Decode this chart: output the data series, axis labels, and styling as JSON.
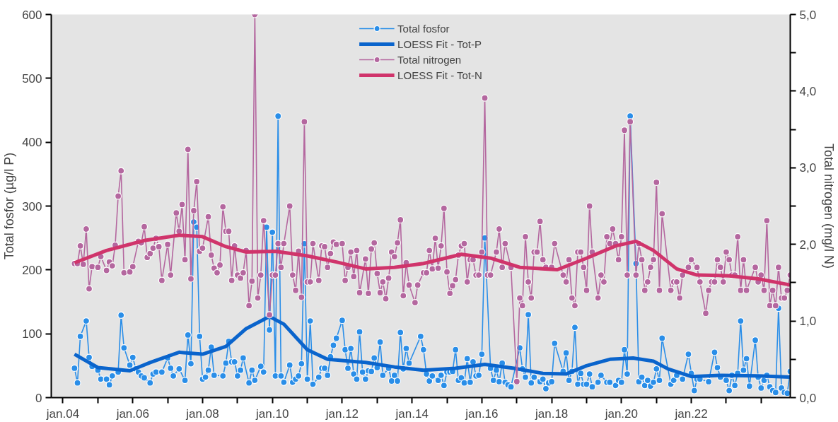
{
  "chart_data": {
    "type": "line",
    "xlabel": null,
    "ylabel": "Total fosfor (µg/l P)",
    "y2label": "Total nitrogen (mg/l N)",
    "xlim": [
      "2003-09",
      "2024-11"
    ],
    "xticks": [
      {
        "value": "2004-01",
        "label": "jan.04"
      },
      {
        "value": "2005-01",
        "label": null
      },
      {
        "value": "2006-01",
        "label": "jan.06"
      },
      {
        "value": "2007-01",
        "label": null
      },
      {
        "value": "2008-01",
        "label": "jan.08"
      },
      {
        "value": "2009-01",
        "label": null
      },
      {
        "value": "2010-01",
        "label": "jan.10"
      },
      {
        "value": "2011-01",
        "label": null
      },
      {
        "value": "2012-01",
        "label": "jan.12"
      },
      {
        "value": "2013-01",
        "label": null
      },
      {
        "value": "2014-01",
        "label": "jan.14"
      },
      {
        "value": "2015-01",
        "label": null
      },
      {
        "value": "2016-01",
        "label": "jan.16"
      },
      {
        "value": "2017-01",
        "label": null
      },
      {
        "value": "2018-01",
        "label": "jan.18"
      },
      {
        "value": "2019-01",
        "label": null
      },
      {
        "value": "2020-01",
        "label": "jan.20"
      },
      {
        "value": "2021-01",
        "label": null
      },
      {
        "value": "2022-01",
        "label": "jan.22"
      },
      {
        "value": "2023-01",
        "label": null
      },
      {
        "value": "2024-01",
        "label": null
      }
    ],
    "ylim": [
      0,
      600
    ],
    "yticks": [
      0,
      100,
      200,
      300,
      400,
      500,
      600
    ],
    "y2lim": [
      0,
      5
    ],
    "y2ticks": [
      {
        "value": 0,
        "label": "0,0"
      },
      {
        "value": 0.5,
        "label": null
      },
      {
        "value": 1,
        "label": "1,0"
      },
      {
        "value": 1.5,
        "label": null
      },
      {
        "value": 2,
        "label": "2,0"
      },
      {
        "value": 2.5,
        "label": null
      },
      {
        "value": 3,
        "label": "3,0"
      },
      {
        "value": 3.5,
        "label": null
      },
      {
        "value": 4,
        "label": "4,0"
      },
      {
        "value": 4.5,
        "label": null
      },
      {
        "value": 5,
        "label": "5,0"
      }
    ],
    "legend": "top",
    "series": [
      {
        "name": "Total fosfor",
        "color": "#2a8ee8",
        "marker": "circle",
        "x": [
          "2004-05",
          "2004-06",
          "2004-07",
          "2004-09",
          "2004-10",
          "2004-11",
          "2005-01",
          "2005-02",
          "2005-04",
          "2005-05",
          "2005-06",
          "2005-08",
          "2005-09",
          "2005-10",
          "2005-12",
          "2006-01",
          "2006-02",
          "2006-03",
          "2006-04",
          "2006-05",
          "2006-07",
          "2006-08",
          "2006-09",
          "2006-11",
          "2007-01",
          "2007-02",
          "2007-03",
          "2007-05",
          "2007-07",
          "2007-08",
          "2007-09",
          "2007-10",
          "2007-11",
          "2007-12",
          "2008-01",
          "2008-02",
          "2008-03",
          "2008-04",
          "2008-05",
          "2008-08",
          "2008-09",
          "2008-10",
          "2008-11",
          "2008-12",
          "2009-01",
          "2009-02",
          "2009-03",
          "2009-05",
          "2009-06",
          "2009-07",
          "2009-09",
          "2009-10",
          "2009-11",
          "2009-12",
          "2010-01",
          "2010-02",
          "2010-03",
          "2010-04",
          "2010-05",
          "2010-07",
          "2010-08",
          "2010-09",
          "2010-10",
          "2010-11",
          "2010-12",
          "2011-01",
          "2011-02",
          "2011-03",
          "2011-05",
          "2011-06",
          "2011-07",
          "2011-08",
          "2011-09",
          "2011-10",
          "2011-11",
          "2012-01",
          "2012-02",
          "2012-03",
          "2012-04",
          "2012-05",
          "2012-06",
          "2012-07",
          "2012-08",
          "2012-09",
          "2012-10",
          "2012-11",
          "2012-12",
          "2013-01",
          "2013-02",
          "2013-03",
          "2013-05",
          "2013-06",
          "2013-07",
          "2013-08",
          "2013-09",
          "2013-10",
          "2013-11",
          "2013-12",
          "2014-04",
          "2014-05",
          "2014-06",
          "2014-07",
          "2014-08",
          "2014-10",
          "2014-11",
          "2014-12",
          "2015-01",
          "2015-02",
          "2015-03",
          "2015-04",
          "2015-05",
          "2015-06",
          "2015-07",
          "2015-08",
          "2015-09",
          "2015-10",
          "2015-11",
          "2015-12",
          "2016-01",
          "2016-02",
          "2016-04",
          "2016-05",
          "2016-06",
          "2016-07",
          "2016-08",
          "2016-09",
          "2016-10",
          "2016-11",
          "2017-02",
          "2017-03",
          "2017-04",
          "2017-05",
          "2017-06",
          "2017-07",
          "2017-09",
          "2017-10",
          "2017-11",
          "2017-12",
          "2018-01",
          "2018-02",
          "2018-05",
          "2018-06",
          "2018-07",
          "2018-08",
          "2018-09",
          "2018-10",
          "2018-11",
          "2018-12",
          "2019-01",
          "2019-02",
          "2019-03",
          "2019-05",
          "2019-06",
          "2019-08",
          "2019-09",
          "2019-11",
          "2019-12",
          "2020-01",
          "2020-02",
          "2020-03",
          "2020-04",
          "2020-06",
          "2020-07",
          "2020-08",
          "2020-09",
          "2020-10",
          "2020-11",
          "2020-12",
          "2021-01",
          "2021-02",
          "2021-03",
          "2021-06",
          "2021-07",
          "2021-08",
          "2021-10",
          "2021-12",
          "2022-01",
          "2022-02",
          "2022-03",
          "2022-04",
          "2022-07",
          "2022-09",
          "2022-10",
          "2022-11",
          "2023-01",
          "2023-02",
          "2023-03",
          "2023-04",
          "2023-05",
          "2023-06",
          "2023-07",
          "2023-08",
          "2023-09",
          "2023-11",
          "2023-12",
          "2024-01",
          "2024-02",
          "2024-03",
          "2024-04",
          "2024-05",
          "2024-06",
          "2024-07",
          "2024-08",
          "2024-09",
          "2024-10",
          "2024-11"
        ],
        "values": [
          46,
          23,
          96,
          120,
          63,
          49,
          43,
          29,
          29,
          20,
          34,
          40,
          129,
          78,
          51,
          63,
          45,
          40,
          34,
          31,
          23,
          37,
          40,
          40,
          62,
          46,
          34,
          45,
          27,
          98,
          53,
          275,
          267,
          96,
          29,
          32,
          43,
          79,
          35,
          34,
          54,
          88,
          56,
          56,
          34,
          43,
          62,
          23,
          43,
          27,
          49,
          40,
          267,
          106,
          259,
          34,
          441,
          34,
          24,
          51,
          24,
          29,
          34,
          53,
          241,
          29,
          120,
          21,
          32,
          46,
          46,
          35,
          64,
          82,
          93,
          121,
          75,
          46,
          77,
          37,
          29,
          103,
          40,
          29,
          42,
          41,
          62,
          47,
          87,
          35,
          46,
          26,
          35,
          26,
          102,
          45,
          77,
          54,
          96,
          75,
          37,
          26,
          34,
          27,
          35,
          19,
          40,
          40,
          41,
          75,
          27,
          31,
          23,
          61,
          24,
          56,
          34,
          35,
          68,
          250,
          46,
          27,
          43,
          25,
          54,
          24,
          20,
          17,
          78,
          45,
          32,
          130,
          23,
          32,
          25,
          29,
          14,
          23,
          25,
          85,
          41,
          70,
          27,
          41,
          110,
          21,
          38,
          21,
          21,
          37,
          17,
          24,
          35,
          24,
          24,
          19,
          27,
          24,
          75,
          37,
          441,
          210,
          25,
          32,
          19,
          27,
          18,
          24,
          45,
          27,
          93,
          21,
          27,
          35,
          29,
          68,
          38,
          11,
          29,
          29,
          25,
          71,
          47,
          32,
          27,
          11,
          35,
          19,
          38,
          120,
          43,
          61,
          18,
          90,
          32,
          15,
          27,
          35,
          17,
          11,
          8,
          140,
          15,
          8,
          7,
          41
        ]
      },
      {
        "name": "LOESS Fit - Tot-P",
        "color": "#0a64cc",
        "marker": "none",
        "x": [
          "2004-05",
          "2005-01",
          "2005-12",
          "2006-07",
          "2007-05",
          "2008-01",
          "2008-09",
          "2009-04",
          "2009-12",
          "2010-05",
          "2011-01",
          "2011-08",
          "2012-09",
          "2013-07",
          "2014-05",
          "2015-04",
          "2016-02",
          "2016-12",
          "2017-10",
          "2018-06",
          "2019-01",
          "2019-09",
          "2020-05",
          "2020-12",
          "2021-05",
          "2022-01",
          "2022-11",
          "2023-12",
          "2024-11"
        ],
        "values": [
          68,
          47,
          42,
          55,
          71,
          68,
          80,
          108,
          127,
          115,
          75,
          60,
          55,
          48,
          43,
          46,
          52,
          46,
          38,
          37,
          50,
          60,
          62,
          57,
          45,
          33,
          35,
          34,
          32
        ]
      },
      {
        "name": "Total nitrogen",
        "color": "#b4679f",
        "marker": "circle",
        "axis": "y2",
        "x": [
          "2004-05",
          "2004-06",
          "2004-07",
          "2004-08",
          "2004-09",
          "2004-10",
          "2004-11",
          "2005-01",
          "2005-02",
          "2005-04",
          "2005-05",
          "2005-06",
          "2005-07",
          "2005-08",
          "2005-09",
          "2005-10",
          "2005-12",
          "2006-01",
          "2006-03",
          "2006-04",
          "2006-05",
          "2006-06",
          "2006-07",
          "2006-08",
          "2006-09",
          "2006-10",
          "2006-11",
          "2007-01",
          "2007-02",
          "2007-04",
          "2007-05",
          "2007-06",
          "2007-07",
          "2007-08",
          "2007-09",
          "2007-10",
          "2007-11",
          "2007-12",
          "2008-01",
          "2008-03",
          "2008-04",
          "2008-05",
          "2008-06",
          "2008-07",
          "2008-08",
          "2008-09",
          "2008-10",
          "2008-11",
          "2008-12",
          "2009-01",
          "2009-02",
          "2009-03",
          "2009-04",
          "2009-05",
          "2009-06",
          "2009-07",
          "2009-08",
          "2009-09",
          "2009-10",
          "2009-12",
          "2010-01",
          "2010-02",
          "2010-03",
          "2010-04",
          "2010-05",
          "2010-07",
          "2010-08",
          "2010-09",
          "2010-10",
          "2010-11",
          "2010-12",
          "2011-01",
          "2011-02",
          "2011-03",
          "2011-05",
          "2011-06",
          "2011-07",
          "2011-08",
          "2011-09",
          "2011-10",
          "2011-11",
          "2012-01",
          "2012-02",
          "2012-03",
          "2012-04",
          "2012-05",
          "2012-06",
          "2012-07",
          "2012-09",
          "2012-10",
          "2012-11",
          "2012-12",
          "2013-01",
          "2013-02",
          "2013-03",
          "2013-04",
          "2013-05",
          "2013-06",
          "2013-07",
          "2013-08",
          "2013-09",
          "2013-10",
          "2013-11",
          "2013-12",
          "2014-02",
          "2014-03",
          "2014-05",
          "2014-06",
          "2014-07",
          "2014-08",
          "2014-09",
          "2014-10",
          "2014-11",
          "2014-12",
          "2015-01",
          "2015-02",
          "2015-03",
          "2015-04",
          "2015-05",
          "2015-06",
          "2015-07",
          "2015-08",
          "2015-09",
          "2015-10",
          "2015-11",
          "2015-12",
          "2016-01",
          "2016-02",
          "2016-03",
          "2016-04",
          "2016-06",
          "2016-07",
          "2016-08",
          "2016-09",
          "2016-11",
          "2017-01",
          "2017-02",
          "2017-03",
          "2017-04",
          "2017-05",
          "2017-06",
          "2017-07",
          "2017-08",
          "2017-09",
          "2017-10",
          "2017-11",
          "2018-01",
          "2018-02",
          "2018-05",
          "2018-06",
          "2018-07",
          "2018-08",
          "2018-09",
          "2018-10",
          "2018-11",
          "2018-12",
          "2019-01",
          "2019-02",
          "2019-03",
          "2019-05",
          "2019-06",
          "2019-07",
          "2019-08",
          "2019-09",
          "2019-10",
          "2019-11",
          "2019-12",
          "2020-01",
          "2020-02",
          "2020-03",
          "2020-04",
          "2020-06",
          "2020-07",
          "2020-08",
          "2020-09",
          "2020-10",
          "2020-11",
          "2020-12",
          "2021-01",
          "2021-02",
          "2021-03",
          "2021-06",
          "2021-07",
          "2021-08",
          "2021-09",
          "2021-10",
          "2021-12",
          "2022-01",
          "2022-03",
          "2022-04",
          "2022-06",
          "2022-07",
          "2022-08",
          "2022-09",
          "2022-10",
          "2022-11",
          "2022-12",
          "2023-01",
          "2023-02",
          "2023-03",
          "2023-04",
          "2023-05",
          "2023-06",
          "2023-07",
          "2023-08",
          "2023-11",
          "2023-12",
          "2024-01",
          "2024-02",
          "2024-03",
          "2024-04",
          "2024-05",
          "2024-06",
          "2024-07",
          "2024-08",
          "2024-09",
          "2024-10",
          "2024-11"
        ],
        "values": [
          1.75,
          1.75,
          1.98,
          1.74,
          2.2,
          1.42,
          1.71,
          1.7,
          1.84,
          1.66,
          1.77,
          1.72,
          1.99,
          2.63,
          2.96,
          1.63,
          1.64,
          1.71,
          2.04,
          2.02,
          2.23,
          1.83,
          1.88,
          1.95,
          2.08,
          1.97,
          1.53,
          2.0,
          1.6,
          2.41,
          2.17,
          2.52,
          1.8,
          3.24,
          1.55,
          2.44,
          2.82,
          1.91,
          1.95,
          2.36,
          1.86,
          1.69,
          1.63,
          1.73,
          2.49,
          2.17,
          2.17,
          1.53,
          1.98,
          1.6,
          1.56,
          1.63,
          1.92,
          1.2,
          1.52,
          5.0,
          1.3,
          1.6,
          2.31,
          1.08,
          1.6,
          1.6,
          2.01,
          1.7,
          2.01,
          2.5,
          1.6,
          1.4,
          1.91,
          1.31,
          3.6,
          1.51,
          1.51,
          2.01,
          1.53,
          1.98,
          1.97,
          1.7,
          1.88,
          2.03,
          2.0,
          2.01,
          1.53,
          1.7,
          1.9,
          1.58,
          1.92,
          1.37,
          1.81,
          1.36,
          1.94,
          2.02,
          1.62,
          1.37,
          1.51,
          1.29,
          1.56,
          1.9,
          1.84,
          2.02,
          2.32,
          1.33,
          1.76,
          1.47,
          1.24,
          1.47,
          1.63,
          1.63,
          1.92,
          1.68,
          2.08,
          1.69,
          1.98,
          2.47,
          1.64,
          1.36,
          1.46,
          1.54,
          1.86,
          1.98,
          2.01,
          1.51,
          1.8,
          1.8,
          1.6,
          1.6,
          1.9,
          3.91,
          1.6,
          1.6,
          1.9,
          2.2,
          1.7,
          2.01,
          1.7,
          0.21,
          1.3,
          1.2,
          2.1,
          1.51,
          1.3,
          1.9,
          1.9,
          2.3,
          1.8,
          1.7,
          1.7,
          2.01,
          1.6,
          1.51,
          1.8,
          1.3,
          1.2,
          1.9,
          1.9,
          1.7,
          1.4,
          2.5,
          1.9,
          1.3,
          1.6,
          1.51,
          2.1,
          2.01,
          2.2,
          2.01,
          1.8,
          2.1,
          3.49,
          1.6,
          3.6,
          1.6,
          2.01,
          1.8,
          1.4,
          1.51,
          1.7,
          1.8,
          2.81,
          1.4,
          2.4,
          1.4,
          1.51,
          1.51,
          1.3,
          1.6,
          1.7,
          1.8,
          1.7,
          1.51,
          1.1,
          1.4,
          1.51,
          1.51,
          1.8,
          1.7,
          1.51,
          1.9,
          1.8,
          1.6,
          1.6,
          2.1,
          1.4,
          1.8,
          1.4,
          1.7,
          1.51,
          1.6,
          1.4,
          2.31,
          1.2,
          1.4,
          1.2,
          1.7,
          1.3,
          1.3,
          1.4,
          1.6
        ]
      },
      {
        "name": "LOESS Fit - Tot-N",
        "color": "#d0346b",
        "marker": "none",
        "axis": "y2",
        "x": [
          "2004-05",
          "2005-04",
          "2006-05",
          "2007-05",
          "2008-01",
          "2008-09",
          "2009-04",
          "2010-02",
          "2011-01",
          "2011-11",
          "2012-09",
          "2013-07",
          "2014-05",
          "2015-06",
          "2016-04",
          "2017-02",
          "2018-03",
          "2019-01",
          "2019-11",
          "2020-06",
          "2020-12",
          "2021-08",
          "2022-03",
          "2023-02",
          "2023-12",
          "2024-11"
        ],
        "values": [
          1.76,
          1.92,
          2.05,
          2.12,
          2.1,
          1.97,
          1.9,
          1.91,
          1.85,
          1.77,
          1.68,
          1.7,
          1.75,
          1.87,
          1.82,
          1.7,
          1.67,
          1.82,
          1.98,
          2.04,
          1.92,
          1.68,
          1.6,
          1.59,
          1.55,
          1.47
        ]
      }
    ]
  }
}
